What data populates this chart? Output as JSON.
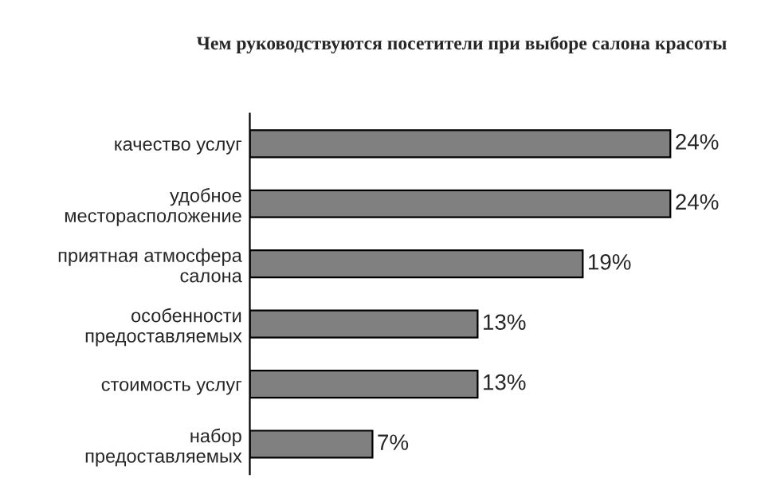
{
  "chart_data": {
    "type": "bar",
    "orientation": "horizontal",
    "title": "Чем руководствуются посетители при выборе салона красоты",
    "categories": [
      "качество услуг",
      "удобное\nместорасположение",
      "приятная атмосфера\nсалона",
      "особенности\nпредоставляемых",
      "стоимость услуг",
      "набор\nпредоставляемых"
    ],
    "values": [
      24,
      24,
      19,
      13,
      13,
      7
    ],
    "value_labels": [
      "24%",
      "24%",
      "19%",
      "13%",
      "13%",
      "7%"
    ],
    "color": "#808080",
    "grid": false,
    "legend": false
  }
}
